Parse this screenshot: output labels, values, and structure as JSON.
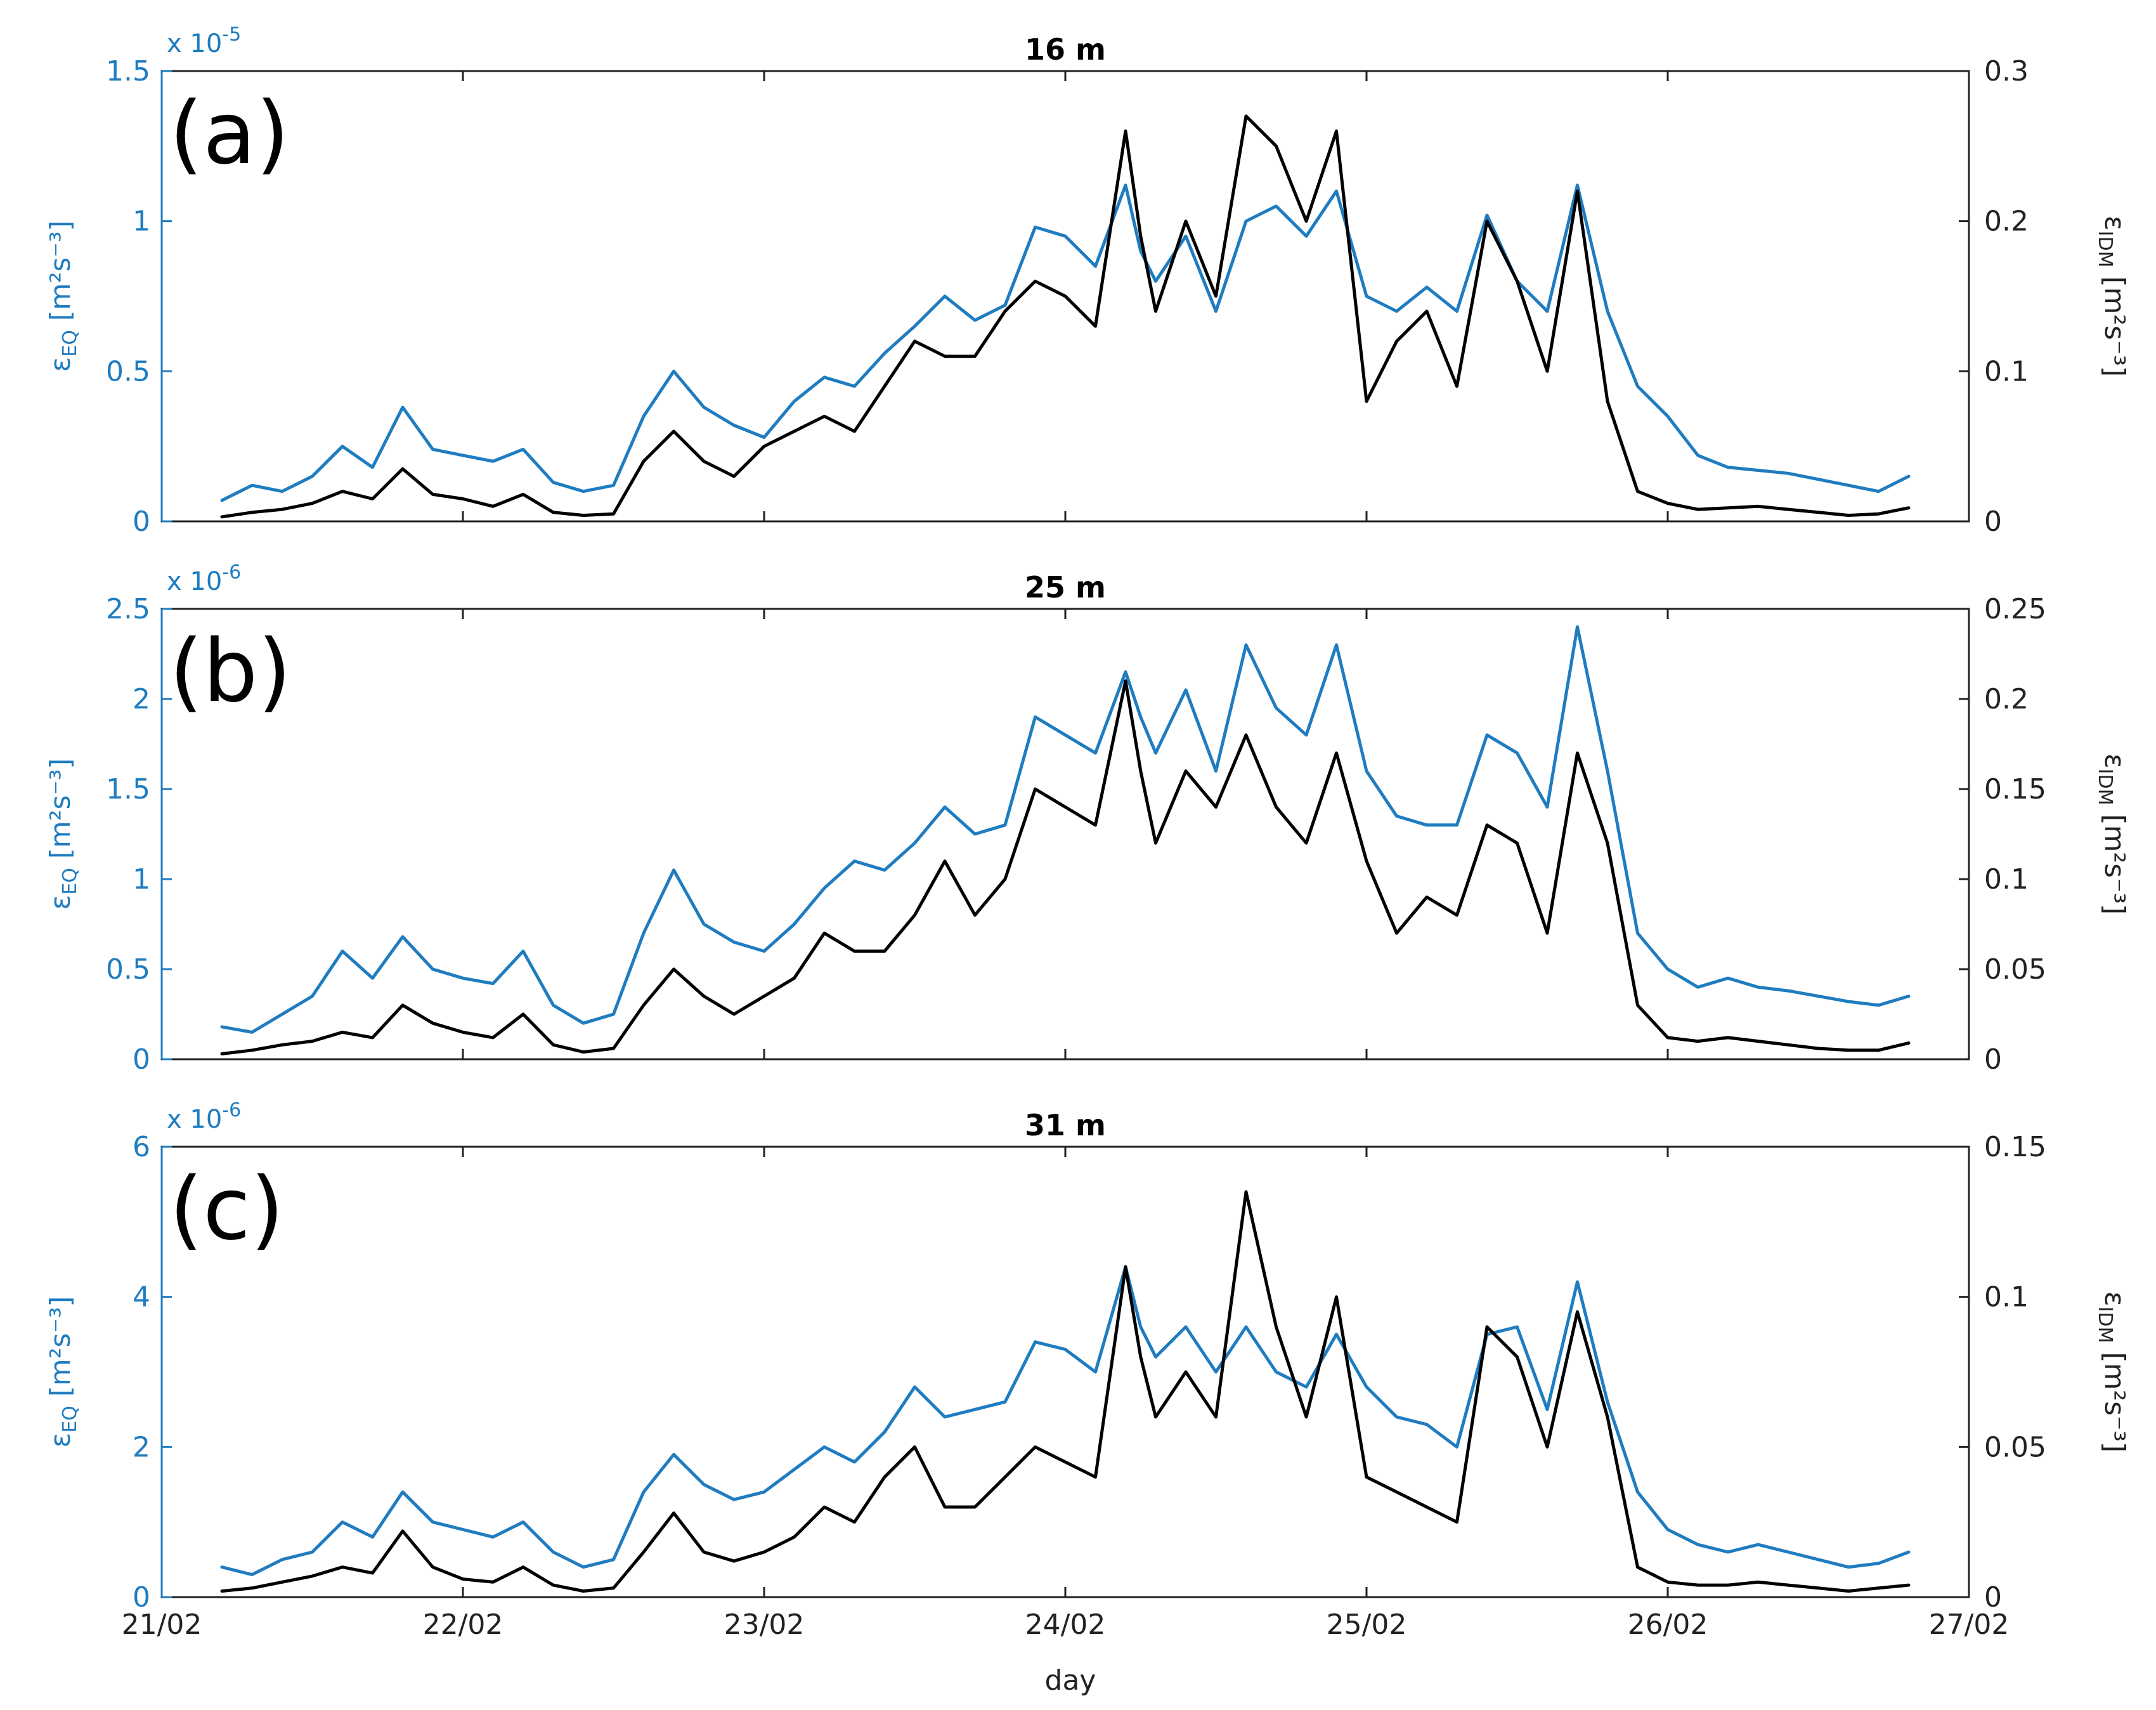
{
  "colors": {
    "eq": "#1f7cc0",
    "idm": "#000000"
  },
  "x_axis": {
    "label": "day",
    "ticks": [
      "21/02",
      "22/02",
      "23/02",
      "24/02",
      "25/02",
      "26/02",
      "27/02"
    ]
  },
  "chart_data": [
    {
      "type": "line",
      "panel": "(a)",
      "title": "16 m",
      "x_unit": "days since 21/02",
      "xlim": [
        0,
        6
      ],
      "left_axis": {
        "label_main": "ε",
        "label_sub": "EQ",
        "label_units": "[m²s⁻³]",
        "ylim": [
          0,
          1.5
        ],
        "ticks": [
          "0",
          "0.5",
          "1",
          "1.5"
        ],
        "tick_values": [
          0,
          0.5,
          1,
          1.5
        ],
        "exponent": "x 10",
        "exponent_power": "-5"
      },
      "right_axis": {
        "label_main": "ε",
        "label_sub": "IDM",
        "label_units": "[m²s⁻³]",
        "ylim": [
          0,
          0.3
        ],
        "ticks": [
          "0",
          "0.1",
          "0.2",
          "0.3"
        ],
        "tick_values": [
          0,
          0.1,
          0.2,
          0.3
        ]
      },
      "series": [
        {
          "name": "ε_EQ",
          "axis": "left",
          "color": "#1f7cc0",
          "x": [
            0.2,
            0.3,
            0.4,
            0.5,
            0.6,
            0.7,
            0.8,
            0.9,
            1.0,
            1.1,
            1.2,
            1.3,
            1.4,
            1.5,
            1.6,
            1.7,
            1.8,
            1.9,
            2.0,
            2.1,
            2.2,
            2.3,
            2.4,
            2.5,
            2.6,
            2.7,
            2.8,
            2.9,
            3.0,
            3.1,
            3.2,
            3.25,
            3.3,
            3.4,
            3.5,
            3.6,
            3.7,
            3.8,
            3.9,
            4.0,
            4.1,
            4.2,
            4.3,
            4.4,
            4.5,
            4.6,
            4.7,
            4.8,
            4.9,
            5.0,
            5.1,
            5.2,
            5.3,
            5.4,
            5.5,
            5.6,
            5.7,
            5.8
          ],
          "values": [
            0.07,
            0.12,
            0.1,
            0.15,
            0.25,
            0.18,
            0.38,
            0.24,
            0.22,
            0.2,
            0.24,
            0.13,
            0.1,
            0.12,
            0.35,
            0.5,
            0.38,
            0.32,
            0.28,
            0.4,
            0.48,
            0.45,
            0.56,
            0.65,
            0.75,
            0.67,
            0.72,
            0.98,
            0.95,
            0.85,
            1.12,
            0.9,
            0.8,
            0.95,
            0.7,
            1.0,
            1.05,
            0.95,
            1.1,
            0.75,
            0.7,
            0.78,
            0.7,
            1.02,
            0.8,
            0.7,
            1.12,
            0.7,
            0.45,
            0.35,
            0.22,
            0.18,
            0.17,
            0.16,
            0.14,
            0.12,
            0.1,
            0.15
          ]
        },
        {
          "name": "ε_IDM",
          "axis": "right",
          "color": "#000000",
          "x": [
            0.2,
            0.3,
            0.4,
            0.5,
            0.6,
            0.7,
            0.8,
            0.9,
            1.0,
            1.1,
            1.2,
            1.3,
            1.4,
            1.5,
            1.6,
            1.7,
            1.8,
            1.9,
            2.0,
            2.1,
            2.2,
            2.3,
            2.4,
            2.5,
            2.6,
            2.7,
            2.8,
            2.9,
            3.0,
            3.1,
            3.2,
            3.25,
            3.3,
            3.4,
            3.5,
            3.6,
            3.7,
            3.8,
            3.9,
            4.0,
            4.1,
            4.2,
            4.3,
            4.4,
            4.5,
            4.6,
            4.7,
            4.8,
            4.9,
            5.0,
            5.1,
            5.2,
            5.3,
            5.4,
            5.5,
            5.6,
            5.7,
            5.8
          ],
          "values": [
            0.003,
            0.006,
            0.008,
            0.012,
            0.02,
            0.015,
            0.035,
            0.018,
            0.015,
            0.01,
            0.018,
            0.006,
            0.004,
            0.005,
            0.04,
            0.06,
            0.04,
            0.03,
            0.05,
            0.06,
            0.07,
            0.06,
            0.09,
            0.12,
            0.11,
            0.11,
            0.14,
            0.16,
            0.15,
            0.13,
            0.26,
            0.19,
            0.14,
            0.2,
            0.15,
            0.27,
            0.25,
            0.2,
            0.26,
            0.08,
            0.12,
            0.14,
            0.09,
            0.2,
            0.16,
            0.1,
            0.22,
            0.08,
            0.02,
            0.012,
            0.008,
            0.009,
            0.01,
            0.008,
            0.006,
            0.004,
            0.005,
            0.009
          ]
        }
      ]
    },
    {
      "type": "line",
      "panel": "(b)",
      "title": "25 m",
      "x_unit": "days since 21/02",
      "xlim": [
        0,
        6
      ],
      "left_axis": {
        "label_main": "ε",
        "label_sub": "EQ",
        "label_units": "[m²s⁻³]",
        "ylim": [
          0,
          2.5
        ],
        "ticks": [
          "0",
          "0.5",
          "1",
          "1.5",
          "2",
          "2.5"
        ],
        "tick_values": [
          0,
          0.5,
          1,
          1.5,
          2,
          2.5
        ],
        "exponent": "x 10",
        "exponent_power": "-6"
      },
      "right_axis": {
        "label_main": "ε",
        "label_sub": "IDM",
        "label_units": "[m²s⁻³]",
        "ylim": [
          0,
          0.25
        ],
        "ticks": [
          "0",
          "0.05",
          "0.1",
          "0.15",
          "0.2",
          "0.25"
        ],
        "tick_values": [
          0,
          0.05,
          0.1,
          0.15,
          0.2,
          0.25
        ]
      },
      "series": [
        {
          "name": "ε_EQ",
          "axis": "left",
          "color": "#1f7cc0",
          "x": [
            0.2,
            0.3,
            0.4,
            0.5,
            0.6,
            0.7,
            0.8,
            0.9,
            1.0,
            1.1,
            1.2,
            1.3,
            1.4,
            1.5,
            1.6,
            1.7,
            1.8,
            1.9,
            2.0,
            2.1,
            2.2,
            2.3,
            2.4,
            2.5,
            2.6,
            2.7,
            2.8,
            2.9,
            3.0,
            3.1,
            3.2,
            3.25,
            3.3,
            3.4,
            3.5,
            3.6,
            3.7,
            3.8,
            3.9,
            4.0,
            4.1,
            4.2,
            4.3,
            4.4,
            4.5,
            4.6,
            4.7,
            4.8,
            4.9,
            5.0,
            5.1,
            5.2,
            5.3,
            5.4,
            5.5,
            5.6,
            5.7,
            5.8
          ],
          "values": [
            0.18,
            0.15,
            0.25,
            0.35,
            0.6,
            0.45,
            0.68,
            0.5,
            0.45,
            0.42,
            0.6,
            0.3,
            0.2,
            0.25,
            0.7,
            1.05,
            0.75,
            0.65,
            0.6,
            0.75,
            0.95,
            1.1,
            1.05,
            1.2,
            1.4,
            1.25,
            1.3,
            1.9,
            1.8,
            1.7,
            2.15,
            1.9,
            1.7,
            2.05,
            1.6,
            2.3,
            1.95,
            1.8,
            2.3,
            1.6,
            1.35,
            1.3,
            1.3,
            1.8,
            1.7,
            1.4,
            2.4,
            1.6,
            0.7,
            0.5,
            0.4,
            0.45,
            0.4,
            0.38,
            0.35,
            0.32,
            0.3,
            0.35
          ]
        },
        {
          "name": "ε_IDM",
          "axis": "right",
          "color": "#000000",
          "x": [
            0.2,
            0.3,
            0.4,
            0.5,
            0.6,
            0.7,
            0.8,
            0.9,
            1.0,
            1.1,
            1.2,
            1.3,
            1.4,
            1.5,
            1.6,
            1.7,
            1.8,
            1.9,
            2.0,
            2.1,
            2.2,
            2.3,
            2.4,
            2.5,
            2.6,
            2.7,
            2.8,
            2.9,
            3.0,
            3.1,
            3.2,
            3.25,
            3.3,
            3.4,
            3.5,
            3.6,
            3.7,
            3.8,
            3.9,
            4.0,
            4.1,
            4.2,
            4.3,
            4.4,
            4.5,
            4.6,
            4.7,
            4.8,
            4.9,
            5.0,
            5.1,
            5.2,
            5.3,
            5.4,
            5.5,
            5.6,
            5.7,
            5.8
          ],
          "values": [
            0.003,
            0.005,
            0.008,
            0.01,
            0.015,
            0.012,
            0.03,
            0.02,
            0.015,
            0.012,
            0.025,
            0.008,
            0.004,
            0.006,
            0.03,
            0.05,
            0.035,
            0.025,
            0.035,
            0.045,
            0.07,
            0.06,
            0.06,
            0.08,
            0.11,
            0.08,
            0.1,
            0.15,
            0.14,
            0.13,
            0.21,
            0.16,
            0.12,
            0.16,
            0.14,
            0.18,
            0.14,
            0.12,
            0.17,
            0.11,
            0.07,
            0.09,
            0.08,
            0.13,
            0.12,
            0.07,
            0.17,
            0.12,
            0.03,
            0.012,
            0.01,
            0.012,
            0.01,
            0.008,
            0.006,
            0.005,
            0.005,
            0.009
          ]
        }
      ]
    },
    {
      "type": "line",
      "panel": "(c)",
      "title": "31 m",
      "x_unit": "days since 21/02",
      "xlim": [
        0,
        6
      ],
      "left_axis": {
        "label_main": "ε",
        "label_sub": "EQ",
        "label_units": "[m²s⁻³]",
        "ylim": [
          0,
          6
        ],
        "ticks": [
          "0",
          "2",
          "4",
          "6"
        ],
        "tick_values": [
          0,
          2,
          4,
          6
        ],
        "exponent": "x 10",
        "exponent_power": "-6"
      },
      "right_axis": {
        "label_main": "ε",
        "label_sub": "IDM",
        "label_units": "[m²s⁻³]",
        "ylim": [
          0,
          0.15
        ],
        "ticks": [
          "0",
          "0.05",
          "0.1",
          "0.15"
        ],
        "tick_values": [
          0,
          0.05,
          0.1,
          0.15
        ]
      },
      "series": [
        {
          "name": "ε_EQ",
          "axis": "left",
          "color": "#1f7cc0",
          "x": [
            0.2,
            0.3,
            0.4,
            0.5,
            0.6,
            0.7,
            0.8,
            0.9,
            1.0,
            1.1,
            1.2,
            1.3,
            1.4,
            1.5,
            1.6,
            1.7,
            1.8,
            1.9,
            2.0,
            2.1,
            2.2,
            2.3,
            2.4,
            2.5,
            2.6,
            2.7,
            2.8,
            2.9,
            3.0,
            3.1,
            3.2,
            3.25,
            3.3,
            3.4,
            3.5,
            3.6,
            3.7,
            3.8,
            3.9,
            4.0,
            4.1,
            4.2,
            4.3,
            4.4,
            4.5,
            4.6,
            4.7,
            4.8,
            4.9,
            5.0,
            5.1,
            5.2,
            5.3,
            5.4,
            5.5,
            5.6,
            5.7,
            5.8
          ],
          "values": [
            0.4,
            0.3,
            0.5,
            0.6,
            1.0,
            0.8,
            1.4,
            1.0,
            0.9,
            0.8,
            1.0,
            0.6,
            0.4,
            0.5,
            1.4,
            1.9,
            1.5,
            1.3,
            1.4,
            1.7,
            2.0,
            1.8,
            2.2,
            2.8,
            2.4,
            2.5,
            2.6,
            3.4,
            3.3,
            3.0,
            4.4,
            3.6,
            3.2,
            3.6,
            3.0,
            3.6,
            3.0,
            2.8,
            3.5,
            2.8,
            2.4,
            2.3,
            2.0,
            3.5,
            3.6,
            2.5,
            4.2,
            2.6,
            1.4,
            0.9,
            0.7,
            0.6,
            0.7,
            0.6,
            0.5,
            0.4,
            0.45,
            0.6
          ]
        },
        {
          "name": "ε_IDM",
          "axis": "right",
          "color": "#000000",
          "x": [
            0.2,
            0.3,
            0.4,
            0.5,
            0.6,
            0.7,
            0.8,
            0.9,
            1.0,
            1.1,
            1.2,
            1.3,
            1.4,
            1.5,
            1.6,
            1.7,
            1.8,
            1.9,
            2.0,
            2.1,
            2.2,
            2.3,
            2.4,
            2.5,
            2.6,
            2.7,
            2.8,
            2.9,
            3.0,
            3.1,
            3.2,
            3.25,
            3.3,
            3.4,
            3.5,
            3.6,
            3.7,
            3.8,
            3.9,
            4.0,
            4.1,
            4.2,
            4.3,
            4.4,
            4.5,
            4.6,
            4.7,
            4.8,
            4.9,
            5.0,
            5.1,
            5.2,
            5.3,
            5.4,
            5.5,
            5.6,
            5.7,
            5.8
          ],
          "values": [
            0.002,
            0.003,
            0.005,
            0.007,
            0.01,
            0.008,
            0.022,
            0.01,
            0.006,
            0.005,
            0.01,
            0.004,
            0.002,
            0.003,
            0.015,
            0.028,
            0.015,
            0.012,
            0.015,
            0.02,
            0.03,
            0.025,
            0.04,
            0.05,
            0.03,
            0.03,
            0.04,
            0.05,
            0.045,
            0.04,
            0.11,
            0.08,
            0.06,
            0.075,
            0.06,
            0.135,
            0.09,
            0.06,
            0.1,
            0.04,
            0.035,
            0.03,
            0.025,
            0.09,
            0.08,
            0.05,
            0.095,
            0.06,
            0.01,
            0.005,
            0.004,
            0.004,
            0.005,
            0.004,
            0.003,
            0.002,
            0.003,
            0.004
          ]
        }
      ]
    }
  ]
}
